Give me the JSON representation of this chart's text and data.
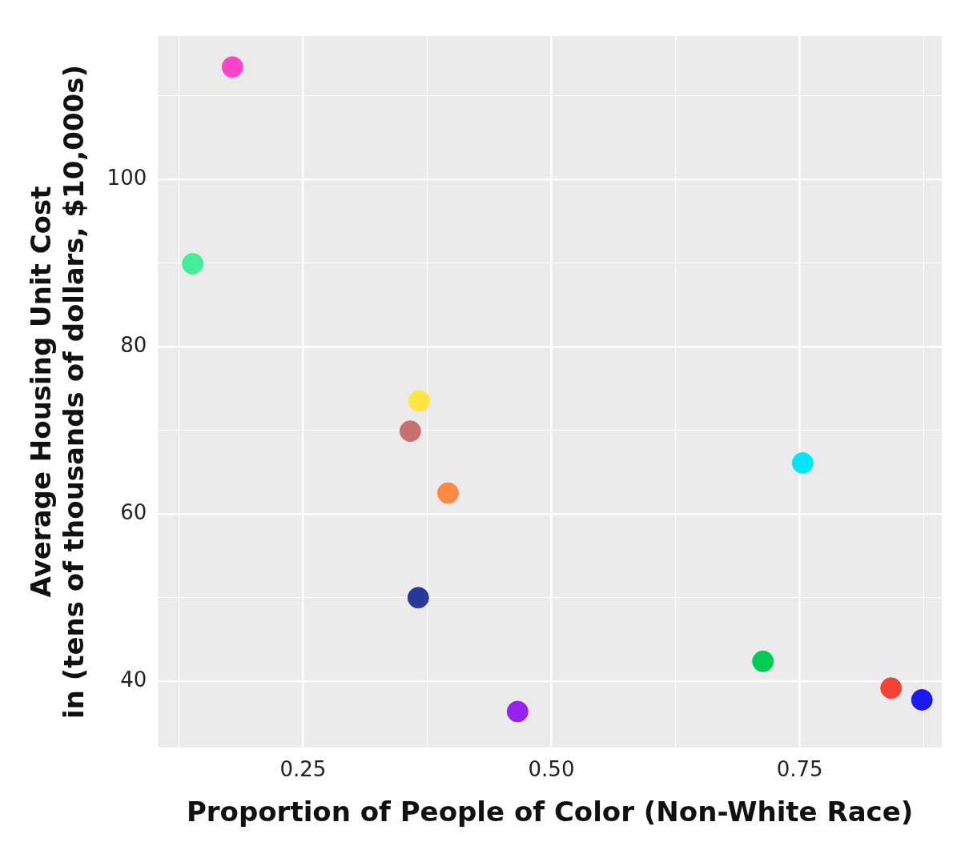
{
  "chart_data": {
    "type": "scatter",
    "xlabel": "Proportion of People of Color (Non-White Race)",
    "ylabel": "Average Housing Unit Cost in (tens of thousands of dollars, $10,000s)",
    "x": [
      0.179,
      0.139,
      0.367,
      0.358,
      0.396,
      0.366,
      0.466,
      0.753,
      0.713,
      0.842,
      0.873
    ],
    "values": [
      113.4,
      89.9,
      73.5,
      69.9,
      62.5,
      50.0,
      36.4,
      66.1,
      42.4,
      39.2,
      37.8
    ],
    "colors": [
      "#ff44cc",
      "#44ee99",
      "#ffe444",
      "#c87070",
      "#ff8844",
      "#2a3899",
      "#9922ee",
      "#00e5ff",
      "#00cc55",
      "#f44336",
      "#1a1aee"
    ],
    "xlim": [
      0.104,
      0.893
    ],
    "ylim": [
      32.1,
      117.1
    ],
    "xticks": [
      {
        "value": 0.125,
        "label": null
      },
      0.25,
      {
        "value": 0.375,
        "label": null
      },
      {
        "value": 0.5,
        "label": "0.50"
      },
      {
        "value": 0.625,
        "label": null
      },
      0.75,
      {
        "value": 0.875,
        "label": null
      }
    ],
    "yticks": [
      40,
      {
        "value": 50,
        "label": null
      },
      60,
      {
        "value": 70,
        "label": null
      },
      80,
      {
        "value": 90,
        "label": null
      },
      100,
      {
        "value": 110,
        "label": null
      }
    ],
    "grid": true,
    "legend": false,
    "marker": "circle"
  }
}
